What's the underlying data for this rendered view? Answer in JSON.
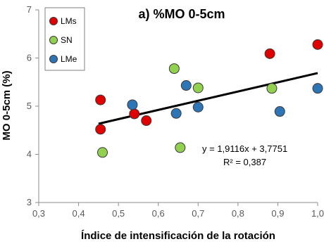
{
  "chart_data": {
    "type": "scatter",
    "title": "a) %MO 0-5cm",
    "xlabel": "Índice de intensificación de la rotación",
    "ylabel": "MO 0-5cm (%)",
    "xlim": [
      0.3,
      1.0
    ],
    "ylim": [
      3,
      7
    ],
    "x_ticks": [
      "0,3",
      "0,4",
      "0,5",
      "0,6",
      "0,7",
      "0,8",
      "0,9",
      "1,0"
    ],
    "y_ticks": [
      "3",
      "4",
      "5",
      "6",
      "7"
    ],
    "grid": false,
    "legend_position": "top-left",
    "series": [
      {
        "name": "LMs",
        "color": "#e00000",
        "points": [
          {
            "x": 0.455,
            "y": 5.13
          },
          {
            "x": 0.455,
            "y": 4.52
          },
          {
            "x": 0.54,
            "y": 4.84
          },
          {
            "x": 0.57,
            "y": 4.7
          },
          {
            "x": 0.88,
            "y": 6.09
          },
          {
            "x": 1.0,
            "y": 6.28
          }
        ]
      },
      {
        "name": "SN",
        "color": "#92d050",
        "points": [
          {
            "x": 0.46,
            "y": 4.04
          },
          {
            "x": 0.64,
            "y": 5.78
          },
          {
            "x": 0.655,
            "y": 4.14
          },
          {
            "x": 0.7,
            "y": 5.38
          },
          {
            "x": 0.885,
            "y": 5.37
          }
        ]
      },
      {
        "name": "LMe",
        "color": "#2e75b6",
        "points": [
          {
            "x": 0.535,
            "y": 5.03
          },
          {
            "x": 0.645,
            "y": 4.85
          },
          {
            "x": 0.67,
            "y": 5.43
          },
          {
            "x": 0.7,
            "y": 4.98
          },
          {
            "x": 0.905,
            "y": 4.89
          },
          {
            "x": 1.0,
            "y": 5.37
          }
        ]
      }
    ],
    "trendline": {
      "slope": 1.9116,
      "intercept": 3.7751,
      "x_range": [
        0.45,
        1.0
      ],
      "color": "#000000"
    },
    "annotations": {
      "equation": "y = 1,9116x + 3,7751",
      "r_squared": "R² = 0,387"
    }
  }
}
